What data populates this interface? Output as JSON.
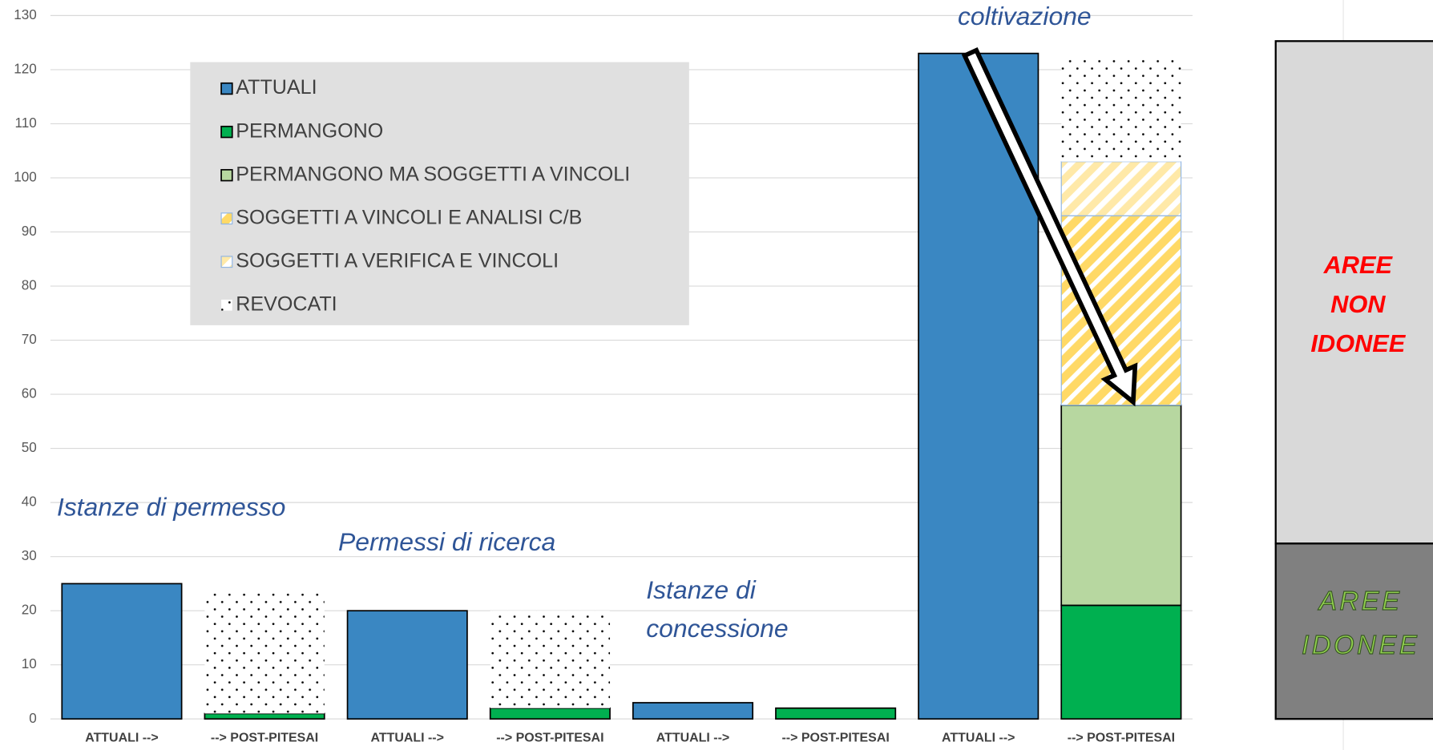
{
  "chart_data": {
    "type": "stacked-bar",
    "categories": [
      "ATTUALI  -->",
      "--> POST-PITESAI",
      "ATTUALI  -->",
      "--> POST-PITESAI",
      "ATTUALI  -->",
      "--> POST-PITESAI",
      "ATTUALI  -->",
      "--> POST-PITESAI"
    ],
    "series": [
      {
        "name": "ATTUALI",
        "color": "#3a87c2",
        "pattern": "solid",
        "values": [
          25,
          null,
          20,
          null,
          3,
          null,
          123,
          null
        ]
      },
      {
        "name": "PERMANGONO",
        "color": "#00b050",
        "pattern": "solid",
        "values": [
          null,
          1,
          null,
          2,
          null,
          2,
          null,
          21
        ]
      },
      {
        "name": "PERMANGONO MA SOGGETTI A VINCOLI",
        "color": "#b7d7a0",
        "pattern": "solid",
        "values": [
          null,
          null,
          null,
          null,
          null,
          null,
          null,
          37
        ]
      },
      {
        "name": "SOGGETTI A VINCOLI E ANALISI C/B",
        "color": "#ffd966",
        "pattern": "hatch",
        "values": [
          null,
          null,
          null,
          null,
          null,
          null,
          null,
          35
        ]
      },
      {
        "name": "SOGGETTI A VERIFICA E VINCOLI",
        "color": "#ffe9a8",
        "pattern": "hatch",
        "values": [
          null,
          null,
          null,
          null,
          null,
          null,
          null,
          10
        ]
      },
      {
        "name": "REVOCATI",
        "color": "#000000",
        "pattern": "dots",
        "values": [
          null,
          23,
          null,
          18,
          null,
          null,
          null,
          19
        ]
      }
    ],
    "ylim": [
      0,
      130
    ],
    "yticks": [
      0,
      10,
      20,
      30,
      40,
      50,
      60,
      70,
      80,
      90,
      100,
      110,
      120,
      130
    ],
    "grid": true,
    "legend": "top-left",
    "annotations": [
      {
        "lines": [
          "Istanze di permesso"
        ]
      },
      {
        "lines": [
          "Permessi di ricerca"
        ]
      },
      {
        "lines": [
          "Istanze di",
          "concessione"
        ]
      },
      {
        "lines": [
          "coltivazione"
        ]
      }
    ]
  },
  "side_panel": {
    "top": {
      "lines": [
        "AREE",
        "NON",
        "IDONEE"
      ]
    },
    "bottom": {
      "lines": [
        "AREE",
        "IDONEE"
      ]
    }
  }
}
